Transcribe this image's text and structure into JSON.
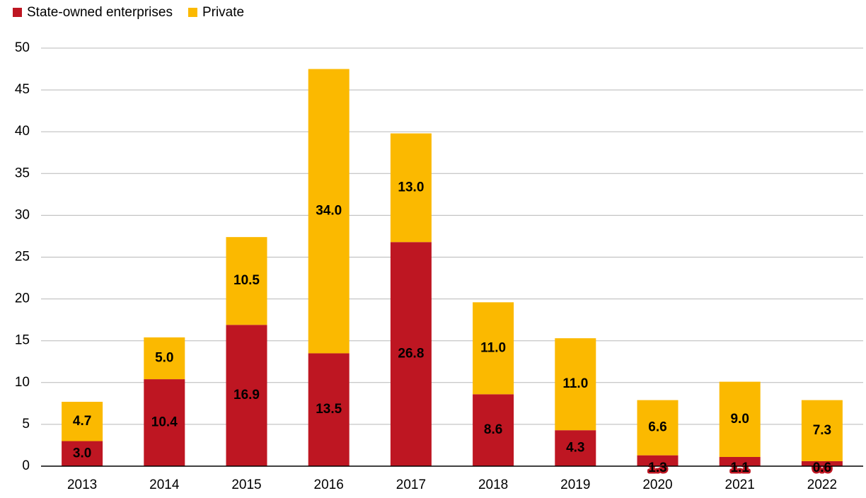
{
  "chart_data": {
    "type": "stacked_bar",
    "categories": [
      "2013",
      "2014",
      "2015",
      "2016",
      "2017",
      "2018",
      "2019",
      "2020",
      "2021",
      "2022"
    ],
    "series": [
      {
        "name": "State-owned enterprises",
        "color": "#be1622",
        "label_color": "#ffffff",
        "values": [
          3.0,
          10.4,
          16.9,
          13.5,
          26.8,
          8.6,
          4.3,
          1.3,
          1.1,
          0.6
        ],
        "value_labels": [
          "3.0",
          "10.4",
          "16.9",
          "13.5",
          "26.8",
          "8.6",
          "4.3",
          "1.3",
          "1.1",
          "0.6"
        ]
      },
      {
        "name": "Private",
        "color": "#fbb900",
        "label_color": "#000000",
        "values": [
          4.7,
          5.0,
          10.5,
          34.0,
          13.0,
          11.0,
          11.0,
          6.6,
          9.0,
          7.3
        ],
        "value_labels": [
          "4.7",
          "5.0",
          "10.5",
          "34.0",
          "13.0",
          "11.0",
          "11.0",
          "6.6",
          "9.0",
          "7.3"
        ]
      }
    ],
    "ylim": [
      0,
      50
    ],
    "yticks": [
      0,
      5,
      10,
      15,
      20,
      25,
      30,
      35,
      40,
      45,
      50
    ],
    "grid": true,
    "legend": "top-left"
  }
}
